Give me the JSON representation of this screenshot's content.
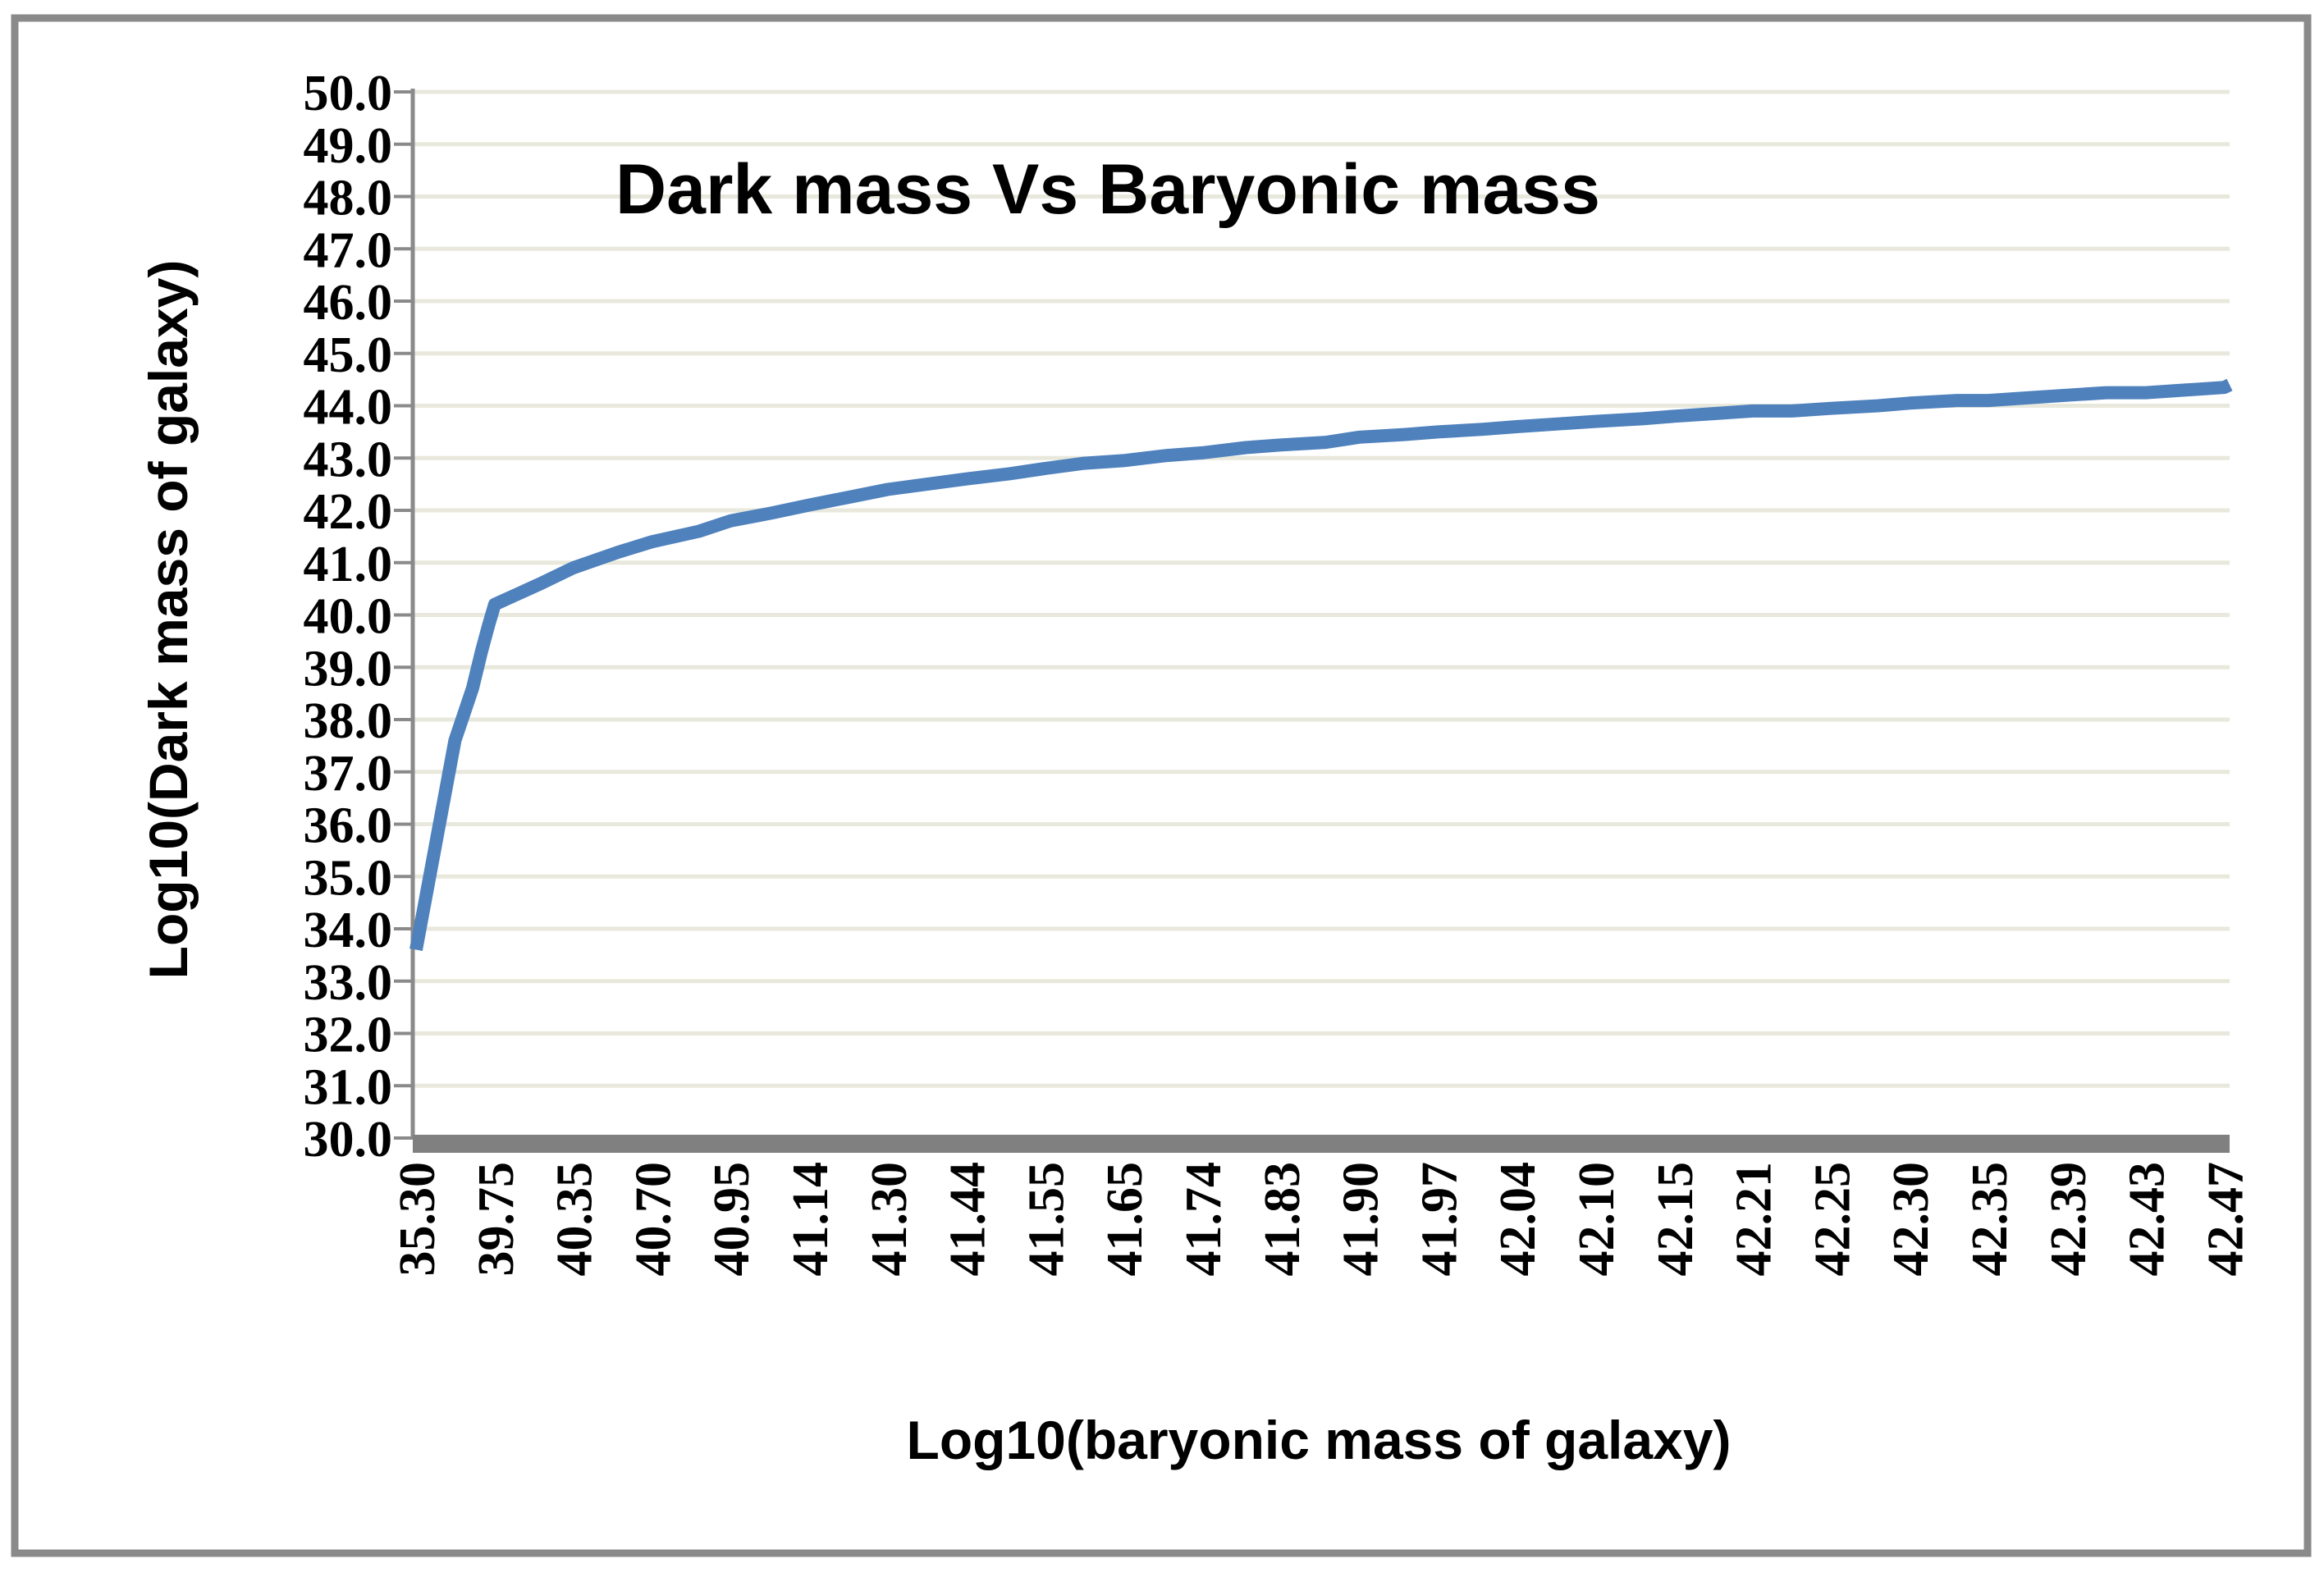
{
  "chart_data": {
    "type": "line",
    "title": "Dark mass Vs Baryonic mass",
    "xlabel": "Log10(baryonic mass of galaxy)",
    "ylabel": "Log10(Dark mass of galaxy)",
    "ylim": [
      30,
      50
    ],
    "y_ticks": [
      "30.0",
      "31.0",
      "32.0",
      "33.0",
      "34.0",
      "35.0",
      "36.0",
      "37.0",
      "38.0",
      "39.0",
      "40.0",
      "41.0",
      "42.0",
      "43.0",
      "44.0",
      "45.0",
      "46.0",
      "47.0",
      "48.0",
      "49.0",
      "50.0"
    ],
    "x_tick_labels": [
      "35.30",
      "39.75",
      "40.35",
      "40.70",
      "40.95",
      "41.14",
      "41.30",
      "41.44",
      "41.55",
      "41.65",
      "41.74",
      "41.83",
      "41.90",
      "41.97",
      "42.04",
      "42.10",
      "42.15",
      "42.21",
      "42.25",
      "42.30",
      "42.35",
      "42.39",
      "42.43",
      "42.47"
    ],
    "grid": true,
    "legend": "none",
    "series": [
      {
        "color": "#4f81bd",
        "x": [
          35.3,
          37.5,
          38.5,
          39.0,
          39.4,
          39.75,
          40.1,
          40.35,
          40.55,
          40.7,
          40.85,
          40.95,
          41.05,
          41.14,
          41.22,
          41.3,
          41.37,
          41.44,
          41.5,
          41.55,
          41.6,
          41.65,
          41.7,
          41.74,
          41.79,
          41.83,
          41.87,
          41.9,
          41.94,
          41.97,
          42.01,
          42.04,
          42.07,
          42.1,
          42.13,
          42.15,
          42.18,
          42.21,
          42.23,
          42.25,
          42.28,
          42.3,
          42.33,
          42.35,
          42.37,
          42.39,
          42.41,
          42.43,
          42.45,
          42.47,
          42.5
        ],
        "y": [
          33.6,
          37.6,
          38.6,
          39.3,
          39.8,
          40.2,
          40.6,
          40.9,
          41.2,
          41.4,
          41.6,
          41.8,
          41.95,
          42.1,
          42.25,
          42.4,
          42.5,
          42.6,
          42.7,
          42.8,
          42.9,
          42.95,
          43.05,
          43.1,
          43.2,
          43.25,
          43.3,
          43.4,
          43.45,
          43.5,
          43.55,
          43.6,
          43.65,
          43.7,
          43.75,
          43.8,
          43.85,
          43.9,
          43.9,
          43.95,
          44.0,
          44.05,
          44.1,
          44.1,
          44.15,
          44.2,
          44.25,
          44.25,
          44.3,
          44.35,
          44.4
        ]
      }
    ]
  }
}
